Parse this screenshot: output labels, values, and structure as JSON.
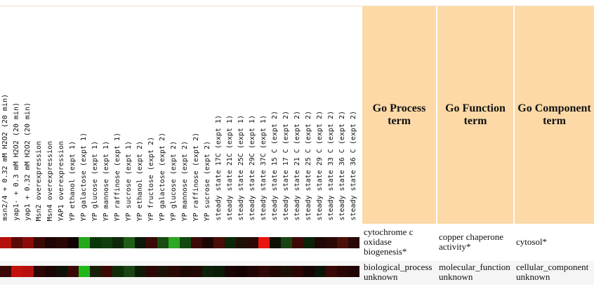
{
  "samples": [
    "msn2/4  + 0.32 mM H2O2 (20 min)",
    "yap1- + 0.3 mM H2O2 (20 min)",
    "yap1 + 0.32 mM H2O2 (20 min)",
    "Msn2 overexpression",
    "Msn4 overexpression",
    "YAP1 overexpression",
    "YP ethanol (expt 1)",
    "YP galactose (expt 1)",
    "YP glucose (expt 1)",
    "YP mannose  (expt 1)",
    "YP raffinose (expt 1)",
    "YP sucrose (expt 1)",
    "YP ethanol (expt 2)",
    "YP fructose  (expt 2)",
    "YP galactose  (expt 2)",
    "YP glucose  (expt 2)",
    "YP mannose  (expt 2)",
    "YP raffinose  (expt 2)",
    "YP sucrose  (expt 2)",
    "steady state 17C (expt 1)",
    "steady state 21C (expt 1)",
    "steady state 25C (expt 1)",
    "steady state 29C (expt 1)",
    "steady state 37C (expt 1)",
    "steady state 15 C (expt 2)",
    "steady state 17 C (expt 2)",
    "steady state 21 C (expt 2)",
    "steady state 25 C (expt 2)",
    "steady state 29 C (expt 2)",
    "steady state 33 C (expt 2)",
    "steady state 36 C (expt 2)",
    "steady state 36 C (expt 2)"
  ],
  "go_headers": {
    "process": "Go Process term",
    "function": "Go Function term",
    "component": "Go Component term"
  },
  "rows": [
    {
      "process": "cytochrome c oxidase biogenesis*",
      "function": "copper chaperone activity*",
      "component": "cytosol*",
      "background": "#ffffff",
      "cells": [
        "#b4110c",
        "#5a0a06",
        "#8a0c08",
        "#3a0805",
        "#200403",
        "#2a0604",
        "#140202",
        "#24a81c",
        "#0a3608",
        "#103e0c",
        "#0d2a08",
        "#1f5e16",
        "#0a1a06",
        "#3c0a06",
        "#1a4c12",
        "#2ca822",
        "#124810",
        "#3c0a06",
        "#1c0604",
        "#4a0c08",
        "#0c2608",
        "#1e1004",
        "#2a0806",
        "#e8140e",
        "#0e1004",
        "#1a4212",
        "#3c0a06",
        "#0c2208",
        "#1e0704",
        "#2a0806",
        "#4a1008",
        "#2a0806"
      ]
    },
    {
      "process": "biological_process unknown",
      "function": "molecular_function unknown",
      "component": "cellular_component unknown",
      "background": "#f5f5f5",
      "cells": [
        "#3c0806",
        "#c4110c",
        "#b8100c",
        "#2a0604",
        "#1c0403",
        "#0e1206",
        "#3a0806",
        "#20b818",
        "#1a1e06",
        "#3c0806",
        "#0e2e08",
        "#1a4412",
        "#0e1a06",
        "#2a0604",
        "#1a1204",
        "#2a0604",
        "#1c0604",
        "#200604",
        "#0c2008",
        "#0a1a06",
        "#180403",
        "#140202",
        "#1e0604",
        "#2e0806",
        "#220604",
        "#1a1004",
        "#280604",
        "#160403",
        "#0a1406",
        "#3a0806",
        "#280604",
        "#200504"
      ]
    }
  ]
}
